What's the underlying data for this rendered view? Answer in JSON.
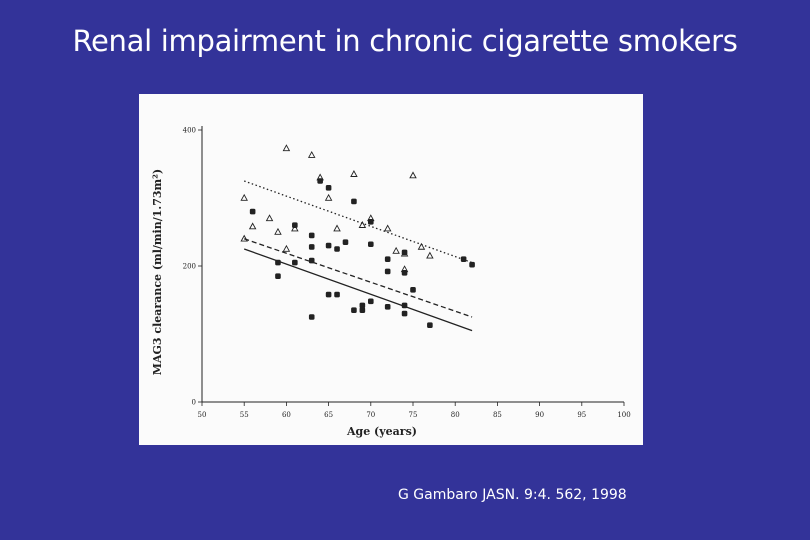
{
  "slide": {
    "title": "Renal impairment in chronic cigarette smokers",
    "citation": "G Gambaro JASN. 9:4. 562, 1998"
  },
  "colors": {
    "background": "#333399",
    "panel": "#fbfbfb",
    "ink": "#222222"
  },
  "chart_data": {
    "type": "scatter",
    "title": "",
    "xlabel": "Age (years)",
    "ylabel": "MAG3 clearance (ml/min/1.73m²)",
    "xlim": [
      50,
      100
    ],
    "ylim": [
      0,
      400
    ],
    "x_ticks": [
      50,
      55,
      60,
      65,
      70,
      75,
      80,
      85,
      90,
      95,
      100
    ],
    "y_ticks": [
      0,
      200,
      400
    ],
    "grid": false,
    "legend": "none",
    "series": [
      {
        "marker": "triangle-open",
        "points": [
          [
            55,
            300
          ],
          [
            56,
            258
          ],
          [
            58,
            270
          ],
          [
            59,
            250
          ],
          [
            60,
            373
          ],
          [
            61,
            255
          ],
          [
            63,
            363
          ],
          [
            64,
            330
          ],
          [
            65,
            300
          ],
          [
            66,
            255
          ],
          [
            68,
            335
          ],
          [
            69,
            260
          ],
          [
            70,
            270
          ],
          [
            72,
            255
          ],
          [
            73,
            222
          ],
          [
            74,
            218
          ],
          [
            74,
            195
          ],
          [
            75,
            333
          ],
          [
            76,
            228
          ],
          [
            77,
            215
          ],
          [
            55,
            240
          ],
          [
            60,
            225
          ]
        ]
      },
      {
        "marker": "filled",
        "points": [
          [
            56,
            280
          ],
          [
            59,
            205
          ],
          [
            59,
            185
          ],
          [
            61,
            260
          ],
          [
            61,
            205
          ],
          [
            63,
            245
          ],
          [
            63,
            228
          ],
          [
            63,
            208
          ],
          [
            63,
            125
          ],
          [
            64,
            325
          ],
          [
            65,
            315
          ],
          [
            65,
            230
          ],
          [
            66,
            225
          ],
          [
            67,
            235
          ],
          [
            68,
            295
          ],
          [
            68,
            135
          ],
          [
            69,
            135
          ],
          [
            69,
            142
          ],
          [
            70,
            265
          ],
          [
            70,
            232
          ],
          [
            70,
            148
          ],
          [
            72,
            210
          ],
          [
            72,
            192
          ],
          [
            72,
            140
          ],
          [
            74,
            220
          ],
          [
            74,
            190
          ],
          [
            74,
            142
          ],
          [
            74,
            130
          ],
          [
            75,
            165
          ],
          [
            77,
            113
          ],
          [
            81,
            210
          ],
          [
            82,
            202
          ],
          [
            65,
            158
          ],
          [
            66,
            158
          ]
        ]
      }
    ],
    "trend_lines": [
      {
        "style": "dotted",
        "from": [
          55,
          325
        ],
        "to": [
          82,
          205
        ]
      },
      {
        "style": "dashed",
        "from": [
          55,
          240
        ],
        "to": [
          82,
          125
        ]
      },
      {
        "style": "solid",
        "from": [
          55,
          225
        ],
        "to": [
          82,
          105
        ]
      }
    ]
  }
}
